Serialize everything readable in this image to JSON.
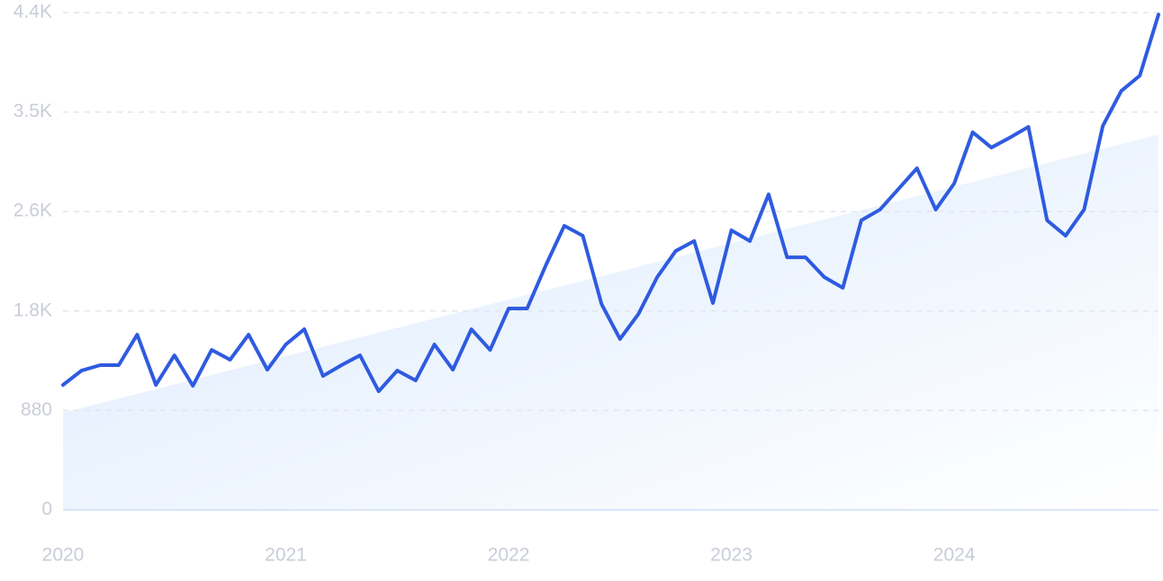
{
  "chart_data": {
    "type": "line",
    "x": [
      2020,
      2020.083,
      2020.167,
      2020.25,
      2020.333,
      2020.417,
      2020.5,
      2020.583,
      2020.667,
      2020.75,
      2020.833,
      2020.917,
      2021,
      2021.083,
      2021.167,
      2021.25,
      2021.333,
      2021.417,
      2021.5,
      2021.583,
      2021.667,
      2021.75,
      2021.833,
      2021.917,
      2022,
      2022.083,
      2022.167,
      2022.25,
      2022.333,
      2022.417,
      2022.5,
      2022.583,
      2022.667,
      2022.75,
      2022.833,
      2022.917,
      2023,
      2023.083,
      2023.167,
      2023.25,
      2023.333,
      2023.417,
      2023.5,
      2023.583,
      2023.667,
      2023.75,
      2023.833,
      2023.917,
      2024,
      2024.083,
      2024.167,
      2024.25,
      2024.333,
      2024.417,
      2024.5,
      2024.583,
      2024.667,
      2024.75,
      2024.833,
      2024.917
    ],
    "series": [
      {
        "color": "#2f5be0",
        "values": [
          1106,
          1233,
          1281,
          1281,
          1551,
          1106,
          1368,
          1098,
          1416,
          1329,
          1551,
          1241,
          1464,
          1599,
          1185,
          1281,
          1368,
          1050,
          1233,
          1146,
          1464,
          1241,
          1599,
          1416,
          1782,
          1782,
          2164,
          2514,
          2426,
          1822,
          1512,
          1734,
          2060,
          2291,
          2379,
          1830,
          2474,
          2379,
          2792,
          2235,
          2235,
          2060,
          1965,
          2562,
          2657,
          2840,
          3023,
          2657,
          2888,
          3341,
          3206,
          3294,
          3389,
          2562,
          2426,
          2657,
          3397,
          3707,
          3842,
          4383
        ]
      }
    ],
    "trend": {
      "x": [
        2020,
        2024.917
      ],
      "values": [
        860,
        3320
      ],
      "color": "#dbeafe"
    },
    "xlim": [
      2020,
      2024.917
    ],
    "xticks": [
      2020,
      2021,
      2022,
      2023,
      2024
    ],
    "ylim": [
      0,
      4400
    ],
    "yticks": [
      0,
      880,
      {
        "value": 1760,
        "label": "1.8K"
      },
      {
        "value": 2640,
        "label": "2.6K"
      },
      {
        "value": 3520,
        "label": "3.5K"
      },
      {
        "value": 4400,
        "label": "4.4K"
      }
    ],
    "grid": true
  }
}
